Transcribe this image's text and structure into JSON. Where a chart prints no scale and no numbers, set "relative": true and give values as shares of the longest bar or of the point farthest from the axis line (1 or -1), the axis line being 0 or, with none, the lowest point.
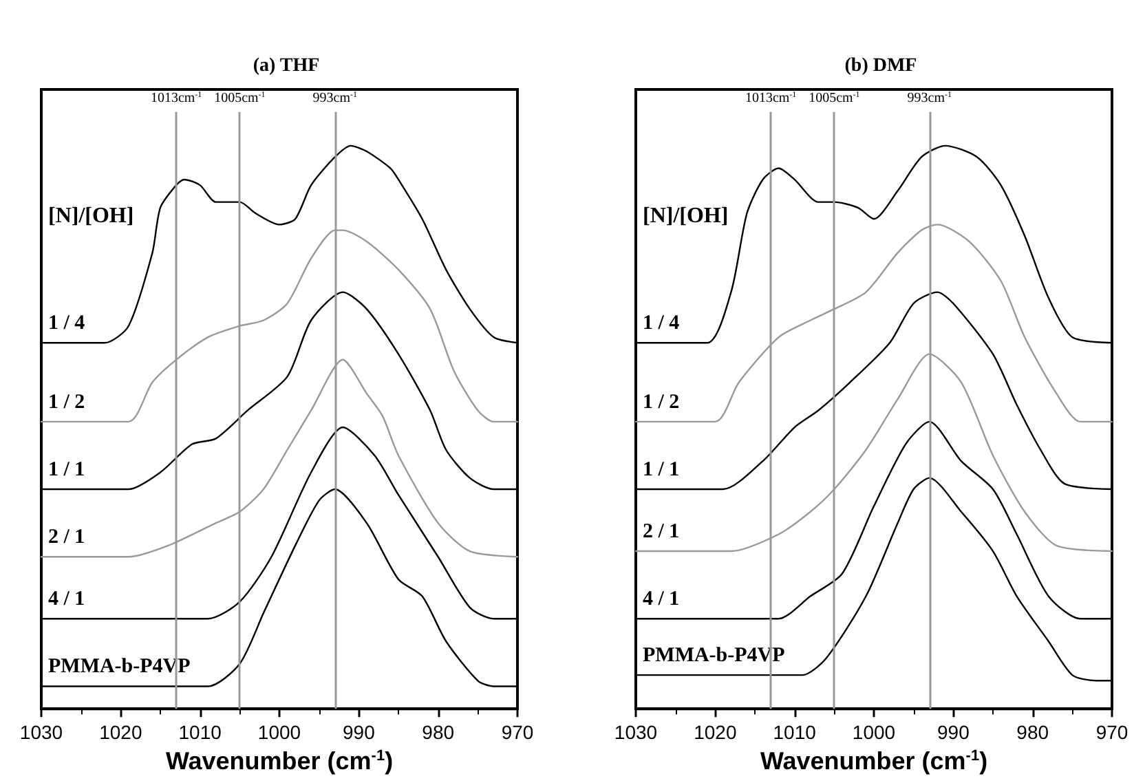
{
  "chart_data": [
    {
      "type": "line",
      "title": "(a) THF",
      "xlabel": "Wavenumber (cm$^{-1}$)",
      "legend_title": "[N]/[OH]",
      "relative": true,
      "xlim": [
        1030,
        970
      ],
      "xticks": [
        1030,
        1020,
        1010,
        1000,
        990,
        980,
        970
      ],
      "ref_lines": [
        {
          "axis": "x",
          "value": 1013,
          "label": "1013cm$^{-1}$",
          "color": "#999999"
        },
        {
          "axis": "x",
          "value": 1005,
          "label": "1005cm$^{-1}$",
          "color": "#999999"
        },
        {
          "axis": "x",
          "value": 993,
          "label": "993cm$^{-1}$",
          "color": "#999999"
        }
      ],
      "series": [
        {
          "name": "1 / 4",
          "color": "#000000",
          "x": [
            1030,
            1022,
            1019,
            1016,
            1015,
            1013,
            1012,
            1010,
            1008,
            1005,
            1003,
            1000,
            998,
            996,
            993,
            991,
            989,
            986,
            985,
            982,
            979,
            976,
            973,
            970
          ],
          "values": [
            0.65,
            0.65,
            0.68,
            0.81,
            0.89,
            0.93,
            0.94,
            0.93,
            0.9,
            0.9,
            0.88,
            0.86,
            0.87,
            0.93,
            0.98,
            1,
            0.99,
            0.96,
            0.94,
            0.87,
            0.78,
            0.71,
            0.66,
            0.65
          ]
        },
        {
          "name": "1 / 2",
          "color": "#999999",
          "x": [
            1030,
            1019,
            1016,
            1013,
            1009,
            1005,
            1002,
            999,
            996,
            993,
            992,
            989,
            985,
            981,
            978,
            975,
            973,
            970
          ],
          "values": [
            0.51,
            0.51,
            0.58,
            0.62,
            0.66,
            0.68,
            0.69,
            0.72,
            0.8,
            0.85,
            0.85,
            0.83,
            0.78,
            0.71,
            0.6,
            0.53,
            0.51,
            0.51
          ]
        },
        {
          "name": "1 / 1",
          "color": "#000000",
          "x": [
            1030,
            1019,
            1015,
            1011,
            1008,
            1004,
            999,
            996,
            992,
            989,
            985,
            981,
            979,
            976,
            973,
            970
          ],
          "values": [
            0.39,
            0.39,
            0.42,
            0.47,
            0.48,
            0.53,
            0.59,
            0.69,
            0.74,
            0.71,
            0.63,
            0.53,
            0.46,
            0.41,
            0.39,
            0.39
          ]
        },
        {
          "name": "2 / 1",
          "color": "#999999",
          "x": [
            1030,
            1019,
            1014,
            1008,
            1005,
            1002,
            999,
            996,
            992,
            989,
            987,
            985,
            980,
            976,
            970
          ],
          "values": [
            0.27,
            0.27,
            0.29,
            0.33,
            0.35,
            0.39,
            0.46,
            0.53,
            0.62,
            0.56,
            0.52,
            0.45,
            0.33,
            0.28,
            0.27
          ]
        },
        {
          "name": "4 / 1",
          "color": "#000000",
          "x": [
            1030,
            1009,
            1005,
            1001,
            996,
            992,
            988,
            985,
            980,
            976,
            973,
            970
          ],
          "values": [
            0.16,
            0.16,
            0.19,
            0.27,
            0.42,
            0.5,
            0.45,
            0.38,
            0.27,
            0.18,
            0.16,
            0.16
          ]
        },
        {
          "name": "PMMA-b-P4VP",
          "color": "#000000",
          "x": [
            1030,
            1009,
            1005,
            1002,
            998,
            995,
            993,
            989,
            985,
            982,
            979,
            975,
            973,
            970
          ],
          "values": [
            0.04,
            0.04,
            0.08,
            0.17,
            0.29,
            0.37,
            0.39,
            0.33,
            0.23,
            0.2,
            0.12,
            0.05,
            0.04,
            0.04
          ]
        }
      ]
    },
    {
      "type": "line",
      "title": "(b) DMF",
      "xlabel": "Wavenumber (cm$^{-1}$)",
      "legend_title": "[N]/[OH]",
      "relative": true,
      "xlim": [
        1030,
        970
      ],
      "xticks": [
        1030,
        1020,
        1010,
        1000,
        990,
        980,
        970
      ],
      "ref_lines": [
        {
          "axis": "x",
          "value": 1013,
          "label": "1013cm$^{-1}$",
          "color": "#999999"
        },
        {
          "axis": "x",
          "value": 1005,
          "label": "1005cm$^{-1}$",
          "color": "#999999"
        },
        {
          "axis": "x",
          "value": 993,
          "label": "993cm$^{-1}$",
          "color": "#999999"
        }
      ],
      "series": [
        {
          "name": "1 / 4",
          "color": "#000000",
          "x": [
            1030,
            1021,
            1018,
            1016,
            1014,
            1012,
            1010,
            1007,
            1005,
            1002,
            1000,
            997,
            994,
            991,
            987,
            984,
            981,
            978,
            975,
            970
          ],
          "values": [
            0.65,
            0.65,
            0.74,
            0.88,
            0.94,
            0.96,
            0.94,
            0.9,
            0.9,
            0.89,
            0.87,
            0.92,
            0.98,
            1,
            0.98,
            0.93,
            0.84,
            0.73,
            0.66,
            0.65
          ]
        },
        {
          "name": "1 / 2",
          "color": "#999999",
          "x": [
            1030,
            1020,
            1017,
            1012,
            1008,
            1005,
            1001,
            997,
            994,
            992,
            988,
            984,
            981,
            977,
            974,
            970
          ],
          "values": [
            0.51,
            0.51,
            0.58,
            0.66,
            0.69,
            0.71,
            0.74,
            0.81,
            0.85,
            0.86,
            0.83,
            0.76,
            0.66,
            0.56,
            0.51,
            0.51
          ]
        },
        {
          "name": "1 / 1",
          "color": "#000000",
          "x": [
            1030,
            1019,
            1014,
            1010,
            1007,
            1003,
            998,
            995,
            992,
            990,
            985,
            982,
            979,
            976,
            970
          ],
          "values": [
            0.39,
            0.39,
            0.44,
            0.5,
            0.53,
            0.58,
            0.65,
            0.72,
            0.74,
            0.72,
            0.63,
            0.54,
            0.46,
            0.4,
            0.39
          ]
        },
        {
          "name": "2 / 1",
          "color": "#999999",
          "x": [
            1030,
            1018,
            1012,
            1008,
            1005,
            1001,
            997,
            993,
            989,
            985,
            981,
            977,
            970
          ],
          "values": [
            0.28,
            0.28,
            0.31,
            0.35,
            0.39,
            0.46,
            0.55,
            0.63,
            0.58,
            0.45,
            0.35,
            0.29,
            0.28
          ]
        },
        {
          "name": "4 / 1",
          "color": "#000000",
          "x": [
            1030,
            1017,
            1012,
            1008,
            1004,
            1000,
            996,
            993,
            989,
            985,
            982,
            978,
            974,
            970
          ],
          "values": [
            0.16,
            0.16,
            0.16,
            0.2,
            0.24,
            0.36,
            0.47,
            0.51,
            0.44,
            0.39,
            0.31,
            0.2,
            0.16,
            0.16
          ]
        },
        {
          "name": "PMMA-b-P4VP",
          "color": "#000000",
          "x": [
            1030,
            1014,
            1009,
            1006,
            1001,
            997,
            995,
            993,
            989,
            985,
            982,
            978,
            975,
            972,
            970
          ],
          "values": [
            0.06,
            0.06,
            0.06,
            0.09,
            0.2,
            0.33,
            0.39,
            0.41,
            0.35,
            0.28,
            0.2,
            0.12,
            0.06,
            0.05,
            0.05
          ]
        }
      ]
    }
  ]
}
